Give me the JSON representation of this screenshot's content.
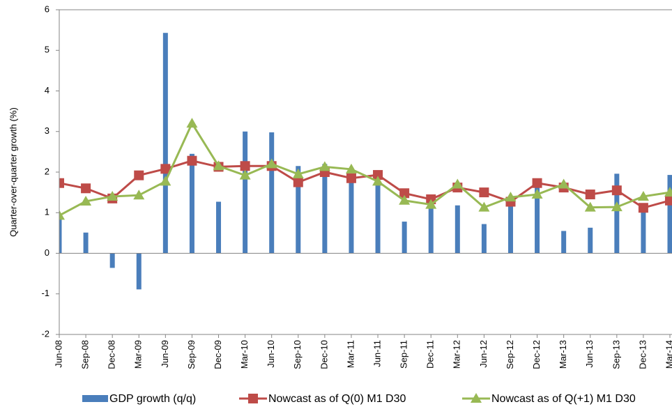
{
  "chart_data": {
    "type": "bar-line",
    "y_label": "Quarter-over-quarter growth (%)",
    "categories": [
      "Jun-08",
      "Sep-08",
      "Dec-08",
      "Mar-09",
      "Jun-09",
      "Sep-09",
      "Dec-09",
      "Mar-10",
      "Jun-10",
      "Sep-10",
      "Dec-10",
      "Mar-11",
      "Jun-11",
      "Sep-11",
      "Dec-11",
      "Mar-12",
      "Jun-12",
      "Sep-12",
      "Dec-12",
      "Mar-13",
      "Jun-13",
      "Sep-13",
      "Dec-13",
      "Mar-14"
    ],
    "series": [
      {
        "name": "GDP growth (q/q)",
        "kind": "bar",
        "color": "#4a7ebb",
        "values": [
          0.86,
          0.51,
          -0.36,
          -0.89,
          5.43,
          2.45,
          1.27,
          3.0,
          2.98,
          2.15,
          2.2,
          1.8,
          1.75,
          0.78,
          1.3,
          1.18,
          0.72,
          1.3,
          1.75,
          0.55,
          0.63,
          1.96,
          1.1,
          1.93
        ]
      },
      {
        "name": "Nowcast as of Q(0) M1 D30",
        "kind": "line",
        "marker": "square",
        "color": "#be4b48",
        "values": [
          1.73,
          1.6,
          1.35,
          1.92,
          2.08,
          2.28,
          2.13,
          2.15,
          2.15,
          1.75,
          2.0,
          1.85,
          1.93,
          1.48,
          1.33,
          1.62,
          1.5,
          1.27,
          1.73,
          1.62,
          1.45,
          1.55,
          1.12,
          1.3
        ]
      },
      {
        "name": "Nowcast as of Q(+1) M1 D30",
        "kind": "line",
        "marker": "triangle",
        "color": "#98b954",
        "values": [
          0.93,
          1.28,
          1.4,
          1.43,
          1.77,
          3.2,
          2.15,
          1.92,
          2.2,
          1.95,
          2.13,
          2.07,
          1.77,
          1.3,
          1.2,
          1.7,
          1.13,
          1.38,
          1.45,
          1.7,
          1.13,
          1.14,
          1.4,
          1.5
        ]
      }
    ],
    "ylim": [
      -2,
      6
    ],
    "yticks": [
      -2,
      -1,
      0,
      1,
      2,
      3,
      4,
      5,
      6
    ],
    "grid": false
  }
}
